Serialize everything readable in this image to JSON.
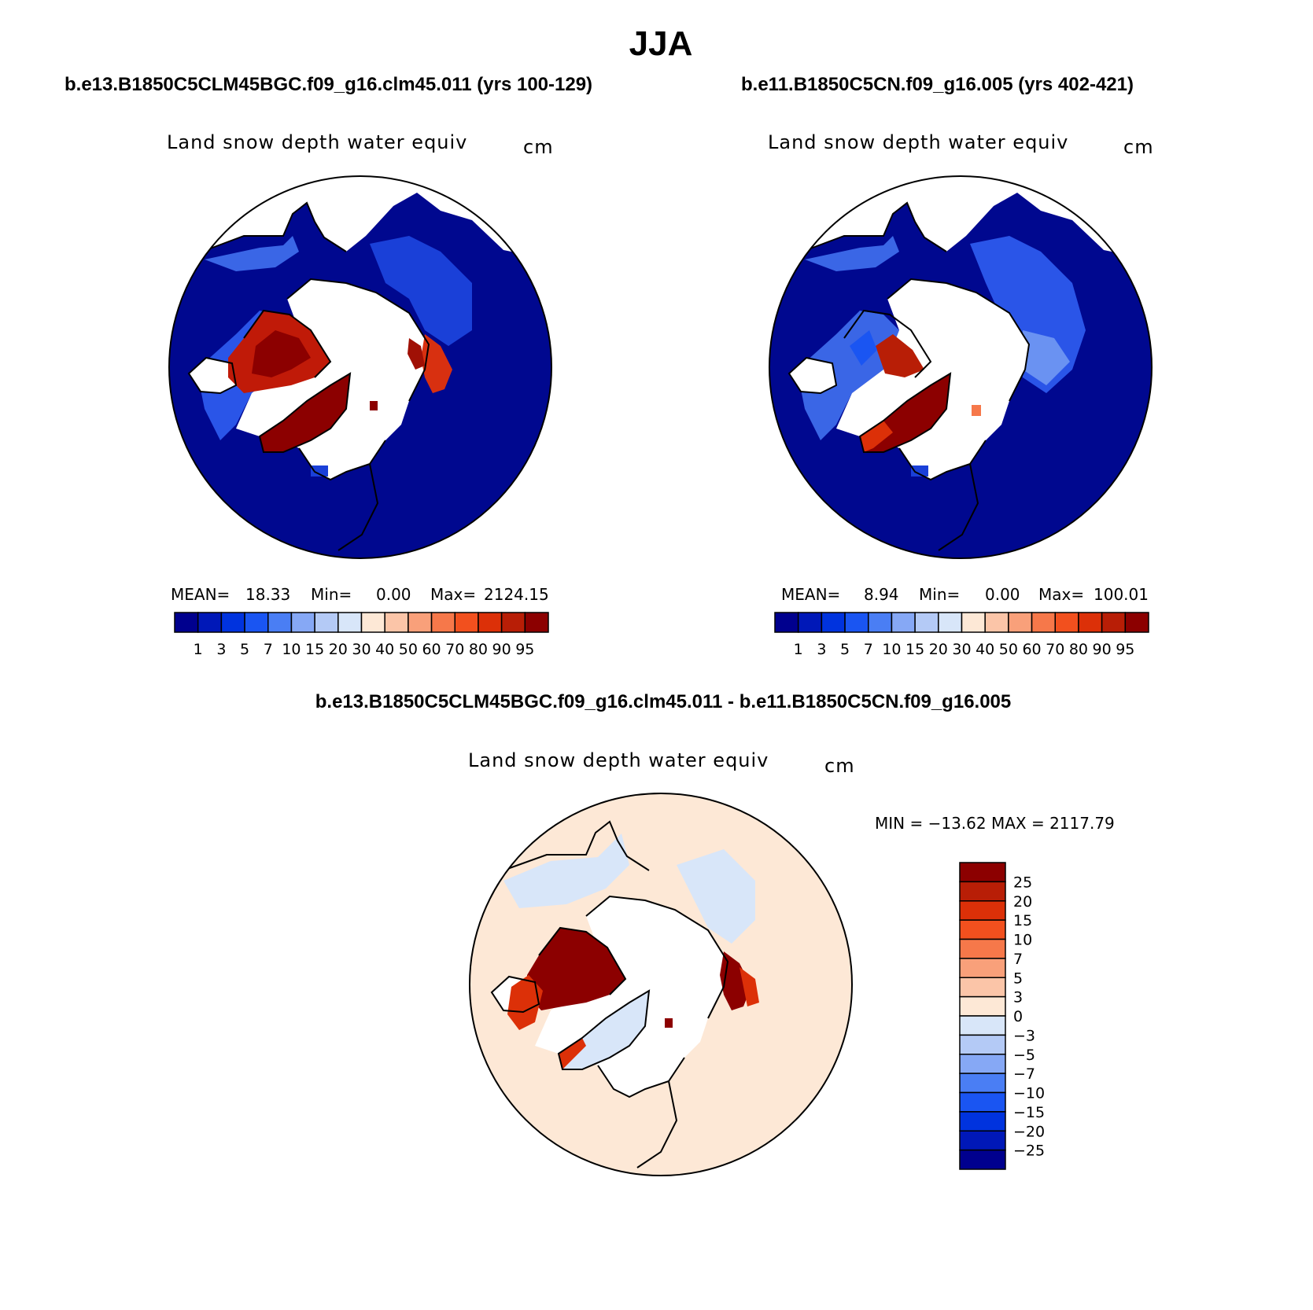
{
  "main_title": "JJA",
  "panels": [
    {
      "case_title": "b.e13.B1850C5CLM45BGC.f09_g16.clm45.011 (yrs 100-129)",
      "variable": "Land snow depth water equiv",
      "units": "cm",
      "stats": {
        "mean_label": "MEAN=",
        "mean": "18.33",
        "min_label": "Min=",
        "min": "0.00",
        "max_label": "Max=",
        "max": "2124.15"
      }
    },
    {
      "case_title": "b.e11.B1850C5CN.f09_g16.005 (yrs 402-421)",
      "variable": "Land snow depth water equiv",
      "units": "cm",
      "stats": {
        "mean_label": "MEAN=",
        "mean": "8.94",
        "min_label": "Min=",
        "min": "0.00",
        "max_label": "Max=",
        "max": "100.01"
      }
    }
  ],
  "diff_panel": {
    "case_title": "b.e13.B1850C5CLM45BGC.f09_g16.clm45.011 - b.e11.B1850C5CN.f09_g16.005",
    "variable": "Land snow depth water equiv",
    "units": "cm",
    "minmax": "MIN = −13.62 MAX = 2117.79"
  },
  "colorbar_abs": {
    "ticks": [
      "1",
      "3",
      "5",
      "7",
      "10",
      "15",
      "20",
      "30",
      "40",
      "50",
      "60",
      "70",
      "80",
      "90",
      "95"
    ],
    "colors": [
      "#00008e",
      "#0018b8",
      "#0033de",
      "#1a55f2",
      "#4a7ef4",
      "#86a8f5",
      "#b4caf6",
      "#d8e6f9",
      "#fde8d6",
      "#fbc5a8",
      "#f9a07a",
      "#f6784a",
      "#f2501e",
      "#dc3008",
      "#b81e06",
      "#8c0000"
    ]
  },
  "colorbar_diff": {
    "ticks": [
      "25",
      "20",
      "15",
      "10",
      "7",
      "5",
      "3",
      "0",
      "−3",
      "−5",
      "−7",
      "−10",
      "−15",
      "−20",
      "−25"
    ],
    "colors": [
      "#8c0000",
      "#b81e06",
      "#dc3008",
      "#f2501e",
      "#f6784a",
      "#f9a07a",
      "#fbc5a8",
      "#fde8d6",
      "#d8e6f9",
      "#b4caf6",
      "#86a8f5",
      "#4a7ef4",
      "#1a55f2",
      "#0033de",
      "#0018b8",
      "#00008e"
    ]
  }
}
